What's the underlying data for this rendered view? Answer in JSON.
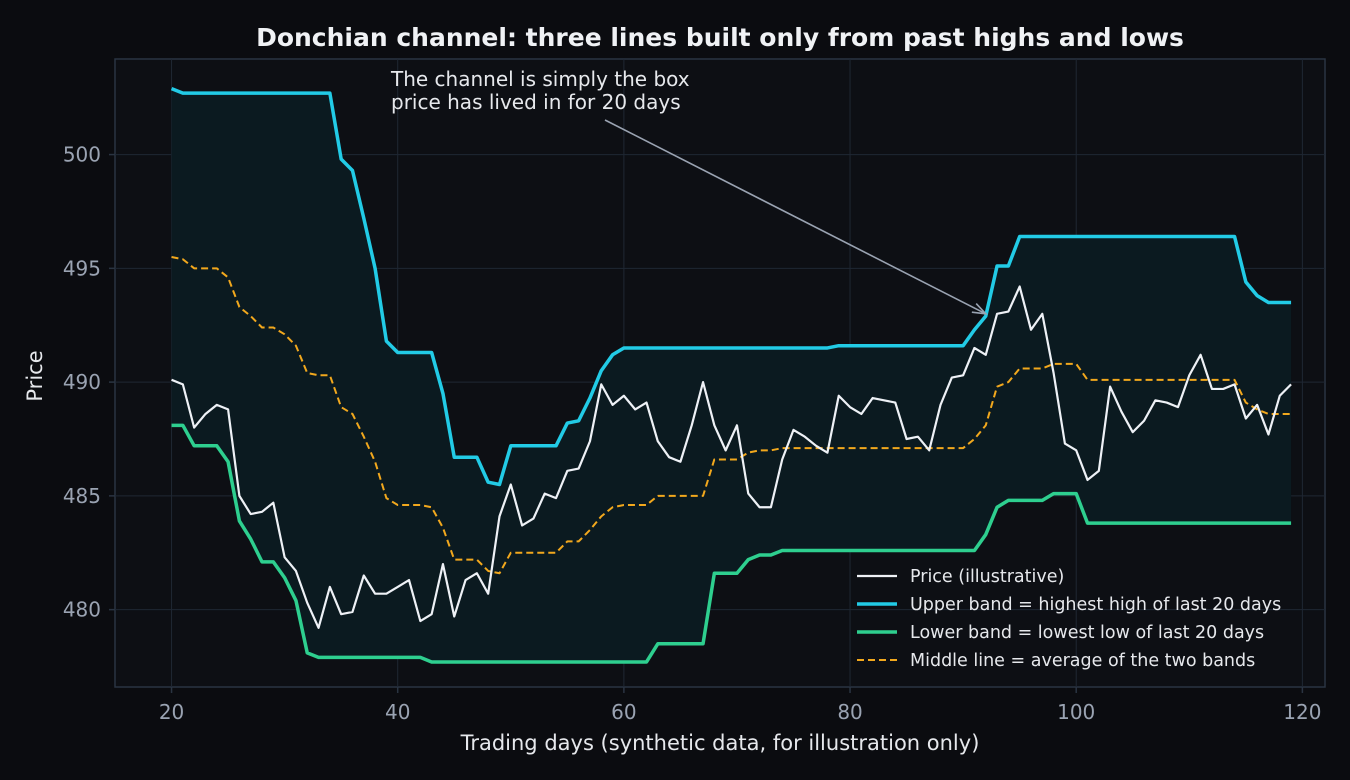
{
  "chart_data": {
    "type": "line",
    "title": "Donchian channel: three lines built only from past highs and lows",
    "xlabel": "Trading days (synthetic data, for illustration only)",
    "ylabel": "Price",
    "xlim": [
      15,
      122
    ],
    "ylim": [
      476.6,
      504.2
    ],
    "xticks": [
      20,
      40,
      60,
      80,
      100,
      120
    ],
    "yticks": [
      480,
      485,
      490,
      495,
      500
    ],
    "grid": true,
    "legend_position": "lower-right",
    "x": [
      20,
      21,
      22,
      23,
      24,
      25,
      26,
      27,
      28,
      29,
      30,
      31,
      32,
      33,
      34,
      35,
      36,
      37,
      38,
      39,
      40,
      41,
      42,
      43,
      44,
      45,
      46,
      47,
      48,
      49,
      50,
      51,
      52,
      53,
      54,
      55,
      56,
      57,
      58,
      59,
      60,
      61,
      62,
      63,
      64,
      65,
      66,
      67,
      68,
      69,
      70,
      71,
      72,
      73,
      74,
      75,
      76,
      77,
      78,
      79,
      80,
      81,
      82,
      83,
      84,
      85,
      86,
      87,
      88,
      89,
      90,
      91,
      92,
      93,
      94,
      95,
      96,
      97,
      98,
      99,
      100,
      101,
      102,
      103,
      104,
      105,
      106,
      107,
      108,
      109,
      110,
      111,
      112,
      113,
      114,
      115,
      116,
      117,
      118,
      119
    ],
    "series": [
      {
        "name": "Price (illustrative)",
        "color": "#eef1f6",
        "style": "solid",
        "values": [
          490.1,
          489.9,
          488.0,
          488.6,
          489.0,
          488.8,
          485.0,
          484.2,
          484.3,
          484.7,
          482.3,
          481.7,
          480.3,
          479.2,
          481.0,
          479.8,
          479.9,
          481.5,
          480.7,
          480.7,
          481.0,
          481.3,
          479.5,
          479.8,
          482.0,
          479.7,
          481.3,
          481.6,
          480.7,
          484.1,
          485.5,
          483.7,
          484.0,
          485.1,
          484.9,
          486.1,
          486.2,
          487.4,
          489.9,
          489.0,
          489.4,
          488.8,
          489.1,
          487.4,
          486.7,
          486.5,
          488.1,
          490.0,
          488.1,
          487.0,
          488.1,
          485.1,
          484.5,
          484.5,
          486.6,
          487.9,
          487.6,
          487.2,
          486.9,
          489.4,
          488.9,
          488.6,
          489.3,
          489.2,
          489.1,
          487.5,
          487.6,
          487.0,
          489.0,
          490.2,
          490.3,
          491.5,
          491.2,
          493.0,
          493.1,
          494.2,
          492.3,
          493.0,
          490.4,
          487.3,
          487.0,
          485.7,
          486.1,
          489.8,
          488.7,
          487.8,
          488.3,
          489.2,
          489.1,
          488.9,
          490.3,
          491.2,
          489.7,
          489.7,
          489.9,
          488.4,
          489.0,
          487.7,
          489.4,
          489.9
        ]
      },
      {
        "name": "Upper band = highest high of last 20 days",
        "color": "#22cbe6",
        "style": "solid",
        "values": [
          502.9,
          502.7,
          502.7,
          502.7,
          502.7,
          502.7,
          502.7,
          502.7,
          502.7,
          502.7,
          502.7,
          502.7,
          502.7,
          502.7,
          502.7,
          499.8,
          499.3,
          497.2,
          495.0,
          491.8,
          491.3,
          491.3,
          491.3,
          491.3,
          489.5,
          486.7,
          486.7,
          486.7,
          485.6,
          485.5,
          487.2,
          487.2,
          487.2,
          487.2,
          487.2,
          488.2,
          488.3,
          489.3,
          490.5,
          491.2,
          491.5,
          491.5,
          491.5,
          491.5,
          491.5,
          491.5,
          491.5,
          491.5,
          491.5,
          491.5,
          491.5,
          491.5,
          491.5,
          491.5,
          491.5,
          491.5,
          491.5,
          491.5,
          491.5,
          491.6,
          491.6,
          491.6,
          491.6,
          491.6,
          491.6,
          491.6,
          491.6,
          491.6,
          491.6,
          491.6,
          491.6,
          492.3,
          492.9,
          495.1,
          495.1,
          496.4,
          496.4,
          496.4,
          496.4,
          496.4,
          496.4,
          496.4,
          496.4,
          496.4,
          496.4,
          496.4,
          496.4,
          496.4,
          496.4,
          496.4,
          496.4,
          496.4,
          496.4,
          496.4,
          496.4,
          494.4,
          493.8,
          493.5,
          493.5,
          493.5
        ]
      },
      {
        "name": "Lower band = lowest low of last 20 days",
        "color": "#2ecf8f",
        "style": "solid",
        "values": [
          488.1,
          488.1,
          487.2,
          487.2,
          487.2,
          486.5,
          483.9,
          483.1,
          482.1,
          482.1,
          481.4,
          480.4,
          478.1,
          477.9,
          477.9,
          477.9,
          477.9,
          477.9,
          477.9,
          477.9,
          477.9,
          477.9,
          477.9,
          477.7,
          477.7,
          477.7,
          477.7,
          477.7,
          477.7,
          477.7,
          477.7,
          477.7,
          477.7,
          477.7,
          477.7,
          477.7,
          477.7,
          477.7,
          477.7,
          477.7,
          477.7,
          477.7,
          477.7,
          478.5,
          478.5,
          478.5,
          478.5,
          478.5,
          481.6,
          481.6,
          481.6,
          482.2,
          482.4,
          482.4,
          482.6,
          482.6,
          482.6,
          482.6,
          482.6,
          482.6,
          482.6,
          482.6,
          482.6,
          482.6,
          482.6,
          482.6,
          482.6,
          482.6,
          482.6,
          482.6,
          482.6,
          482.6,
          483.3,
          484.5,
          484.8,
          484.8,
          484.8,
          484.8,
          485.1,
          485.1,
          485.1,
          483.8,
          483.8,
          483.8,
          483.8,
          483.8,
          483.8,
          483.8,
          483.8,
          483.8,
          483.8,
          483.8,
          483.8,
          483.8,
          483.8,
          483.8,
          483.8,
          483.8,
          483.8,
          483.8
        ]
      },
      {
        "name": "Middle line = average of the two bands",
        "color": "#f2a81d",
        "style": "dashed",
        "values": [
          495.5,
          495.4,
          495.0,
          495.0,
          495.0,
          494.6,
          493.3,
          492.9,
          492.4,
          492.4,
          492.1,
          491.6,
          490.4,
          490.3,
          490.3,
          488.9,
          488.6,
          487.6,
          486.5,
          484.9,
          484.6,
          484.6,
          484.6,
          484.5,
          483.6,
          482.2,
          482.2,
          482.2,
          481.7,
          481.6,
          482.5,
          482.5,
          482.5,
          482.5,
          482.5,
          483.0,
          483.0,
          483.5,
          484.1,
          484.5,
          484.6,
          484.6,
          484.6,
          485.0,
          485.0,
          485.0,
          485.0,
          485.0,
          486.6,
          486.6,
          486.6,
          486.9,
          487.0,
          487.0,
          487.1,
          487.1,
          487.1,
          487.1,
          487.1,
          487.1,
          487.1,
          487.1,
          487.1,
          487.1,
          487.1,
          487.1,
          487.1,
          487.1,
          487.1,
          487.1,
          487.1,
          487.5,
          488.1,
          489.8,
          490.0,
          490.6,
          490.6,
          490.6,
          490.8,
          490.8,
          490.8,
          490.1,
          490.1,
          490.1,
          490.1,
          490.1,
          490.1,
          490.1,
          490.1,
          490.1,
          490.1,
          490.1,
          490.1,
          490.1,
          490.1,
          489.1,
          488.8,
          488.6,
          488.6,
          488.6
        ]
      }
    ],
    "annotation": {
      "lines": [
        "The channel is simply the box",
        "price has lived in for 20 days"
      ],
      "target": {
        "x": 92,
        "y": 493.0
      },
      "text_anchor": {
        "x": 40,
        "y": 502.3
      }
    }
  },
  "colors": {
    "background": "#0b0c10",
    "plot_background": "#0d0f14",
    "channel_fill": "#0b1a20",
    "grid": "#1f2733",
    "axes_frame": "#2a3442",
    "annotation_arrow": "#9aa3b2"
  }
}
